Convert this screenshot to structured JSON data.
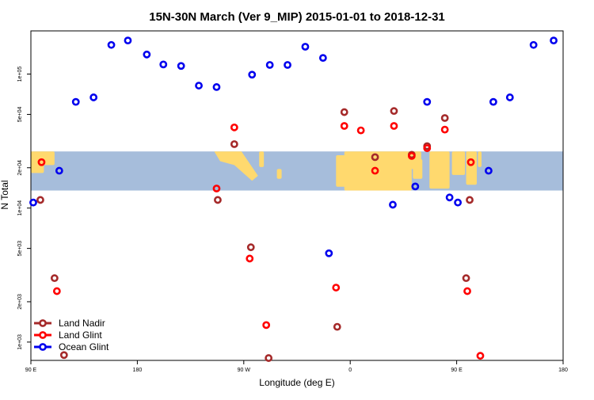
{
  "chart_data": {
    "type": "scatter",
    "title": "15N-30N March (Ver 9_MIP)   2015-01-01 to 2018-12-31",
    "xlabel": "Longitude (deg E)",
    "ylabel": "N Total",
    "x_ticks": [
      {
        "value": 90,
        "label": "90 E"
      },
      {
        "value": 180,
        "label": "180"
      },
      {
        "value": 270,
        "label": "90 W"
      },
      {
        "value": 360,
        "label": "0"
      },
      {
        "value": 450,
        "label": "90 E"
      },
      {
        "value": 540,
        "label": "180"
      }
    ],
    "y_ticks": [
      {
        "value": 1000,
        "label": "1e+03"
      },
      {
        "value": 2000,
        "label": "2e+03"
      },
      {
        "value": 5000,
        "label": "5e+03"
      },
      {
        "value": 10000,
        "label": "1e+04"
      },
      {
        "value": 20000,
        "label": "2e+04"
      },
      {
        "value": 50000,
        "label": "5e+04"
      },
      {
        "value": 100000,
        "label": "1e+05"
      }
    ],
    "xlim": [
      90,
      540
    ],
    "ylim": [
      730,
      210000
    ],
    "yscale": "log",
    "grid": false,
    "legend_position": "bottom-left",
    "map_band_ylim": [
      13500,
      26500
    ],
    "map_colors": {
      "ocean": "#a6bddb",
      "land": "#ffd96e"
    },
    "series": [
      {
        "name": "Land Nadir",
        "color": "#a52a2a",
        "points": [
          {
            "x": 98,
            "y": 11500
          },
          {
            "x": 110,
            "y": 3000
          },
          {
            "x": 118,
            "y": 800
          },
          {
            "x": 248,
            "y": 11500
          },
          {
            "x": 262,
            "y": 30000
          },
          {
            "x": 276,
            "y": 5100
          },
          {
            "x": 291,
            "y": 760
          },
          {
            "x": 349,
            "y": 1300
          },
          {
            "x": 355,
            "y": 52000
          },
          {
            "x": 381,
            "y": 24000
          },
          {
            "x": 397,
            "y": 53000
          },
          {
            "x": 412,
            "y": 25000
          },
          {
            "x": 425,
            "y": 29000
          },
          {
            "x": 440,
            "y": 47000
          },
          {
            "x": 458,
            "y": 3000
          },
          {
            "x": 461,
            "y": 11500
          }
        ]
      },
      {
        "name": "Land Glint",
        "color": "#ff0000",
        "points": [
          {
            "x": 99,
            "y": 22000
          },
          {
            "x": 112,
            "y": 2400
          },
          {
            "x": 247,
            "y": 14000
          },
          {
            "x": 262,
            "y": 40000
          },
          {
            "x": 275,
            "y": 4200
          },
          {
            "x": 289,
            "y": 1340
          },
          {
            "x": 348,
            "y": 2550
          },
          {
            "x": 355,
            "y": 41000
          },
          {
            "x": 369,
            "y": 38000
          },
          {
            "x": 381,
            "y": 19000
          },
          {
            "x": 397,
            "y": 41000
          },
          {
            "x": 412,
            "y": 24500
          },
          {
            "x": 425,
            "y": 28000
          },
          {
            "x": 440,
            "y": 38500
          },
          {
            "x": 459,
            "y": 2400
          },
          {
            "x": 462,
            "y": 22000
          },
          {
            "x": 470,
            "y": 790
          }
        ]
      },
      {
        "name": "Ocean Glint",
        "color": "#0000ee",
        "points": [
          {
            "x": 92,
            "y": 11000
          },
          {
            "x": 114,
            "y": 19000
          },
          {
            "x": 128,
            "y": 62000
          },
          {
            "x": 143,
            "y": 67000
          },
          {
            "x": 158,
            "y": 165000
          },
          {
            "x": 172,
            "y": 178000
          },
          {
            "x": 188,
            "y": 140000
          },
          {
            "x": 202,
            "y": 118000
          },
          {
            "x": 217,
            "y": 115000
          },
          {
            "x": 232,
            "y": 82000
          },
          {
            "x": 247,
            "y": 80000
          },
          {
            "x": 277,
            "y": 99000
          },
          {
            "x": 292,
            "y": 117000
          },
          {
            "x": 307,
            "y": 117000
          },
          {
            "x": 322,
            "y": 160000
          },
          {
            "x": 337,
            "y": 132000
          },
          {
            "x": 342,
            "y": 4600
          },
          {
            "x": 396,
            "y": 10600
          },
          {
            "x": 415,
            "y": 14500
          },
          {
            "x": 425,
            "y": 62000
          },
          {
            "x": 444,
            "y": 12000
          },
          {
            "x": 451,
            "y": 11000
          },
          {
            "x": 477,
            "y": 19000
          },
          {
            "x": 481,
            "y": 62000
          },
          {
            "x": 495,
            "y": 67000
          },
          {
            "x": 515,
            "y": 165000
          },
          {
            "x": 532,
            "y": 178000
          }
        ]
      }
    ]
  }
}
